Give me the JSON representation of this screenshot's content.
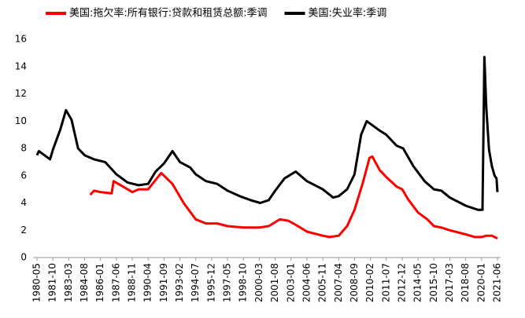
{
  "chart_data": {
    "type": "line",
    "xlim": [
      "1980-05",
      "2021-06"
    ],
    "xticks": [
      "1980-05",
      "1981-10",
      "1983-03",
      "1984-08",
      "1986-01",
      "1987-06",
      "1988-11",
      "1990-04",
      "1991-09",
      "1993-02",
      "1994-07",
      "1995-12",
      "1997-05",
      "1998-10",
      "2000-03",
      "2001-08",
      "2003-01",
      "2004-06",
      "2005-11",
      "2007-04",
      "2008-09",
      "2010-02",
      "2011-07",
      "2012-12",
      "2014-05",
      "2015-10",
      "2017-03",
      "2018-08",
      "2020-01",
      "2021-06"
    ],
    "ylim": [
      0,
      16
    ],
    "yticks": [
      0,
      2,
      4,
      6,
      8,
      10,
      12,
      14,
      16
    ],
    "grid": false,
    "legend": "top",
    "series": [
      {
        "name": "美国:拖欠率:所有银行:贷款和租赁总额:季调",
        "color": "#ff0000",
        "x": [
          "1985-02",
          "1985-06",
          "1986-01",
          "1987-01",
          "1987-03",
          "1988-01",
          "1988-11",
          "1989-06",
          "1990-04",
          "1991-06",
          "1992-06",
          "1993-06",
          "1994-07",
          "1995-06",
          "1996-06",
          "1997-05",
          "1998-10",
          "2000-03",
          "2001-01",
          "2002-01",
          "2002-10",
          "2003-06",
          "2004-06",
          "2005-11",
          "2006-06",
          "2007-04",
          "2008-01",
          "2008-09",
          "2009-06",
          "2010-01",
          "2010-04",
          "2010-12",
          "2011-07",
          "2012-06",
          "2012-12",
          "2013-06",
          "2014-05",
          "2015-03",
          "2015-10",
          "2016-06",
          "2017-03",
          "2018-08",
          "2019-06",
          "2020-01",
          "2020-06",
          "2020-12",
          "2021-06"
        ],
        "values": [
          4.6,
          4.9,
          4.8,
          4.7,
          5.6,
          5.2,
          4.8,
          5.0,
          5.0,
          6.2,
          5.4,
          4.0,
          2.8,
          2.5,
          2.5,
          2.3,
          2.2,
          2.2,
          2.3,
          2.8,
          2.7,
          2.4,
          1.9,
          1.6,
          1.5,
          1.6,
          2.3,
          3.5,
          5.5,
          7.3,
          7.4,
          6.4,
          5.9,
          5.2,
          5.0,
          4.3,
          3.3,
          2.8,
          2.3,
          2.2,
          2.0,
          1.7,
          1.5,
          1.5,
          1.6,
          1.6,
          1.4
        ]
      },
      {
        "name": "美国:失业率:季调",
        "color": "#000000",
        "x": [
          "1980-05",
          "1980-07",
          "1981-01",
          "1981-07",
          "1981-10",
          "1982-06",
          "1982-12",
          "1983-06",
          "1984-01",
          "1984-08",
          "1985-06",
          "1986-06",
          "1987-06",
          "1988-06",
          "1989-06",
          "1990-04",
          "1990-12",
          "1991-09",
          "1992-06",
          "1993-02",
          "1994-01",
          "1994-07",
          "1995-06",
          "1996-06",
          "1997-05",
          "1998-06",
          "1999-06",
          "2000-04",
          "2001-01",
          "2001-08",
          "2002-06",
          "2003-06",
          "2004-06",
          "2005-11",
          "2006-10",
          "2007-04",
          "2008-01",
          "2008-09",
          "2009-04",
          "2009-10",
          "2010-02",
          "2010-12",
          "2011-07",
          "2012-06",
          "2013-01",
          "2013-12",
          "2014-12",
          "2015-10",
          "2016-06",
          "2017-03",
          "2018-08",
          "2019-09",
          "2020-02",
          "2020-04",
          "2020-06",
          "2020-09",
          "2020-12",
          "2021-03",
          "2021-05",
          "2021-06"
        ],
        "values": [
          7.5,
          7.8,
          7.5,
          7.2,
          7.9,
          9.4,
          10.8,
          10.1,
          8.0,
          7.5,
          7.2,
          7.0,
          6.1,
          5.5,
          5.3,
          5.4,
          6.3,
          6.9,
          7.8,
          7.0,
          6.6,
          6.1,
          5.6,
          5.4,
          4.9,
          4.5,
          4.2,
          4.0,
          4.2,
          4.9,
          5.8,
          6.3,
          5.6,
          5.0,
          4.4,
          4.5,
          5.0,
          6.1,
          9.0,
          10.0,
          9.8,
          9.3,
          9.0,
          8.2,
          8.0,
          6.7,
          5.6,
          5.0,
          4.9,
          4.4,
          3.8,
          3.5,
          3.5,
          14.7,
          11.0,
          7.9,
          6.7,
          6.0,
          5.8,
          4.8
        ]
      }
    ]
  }
}
